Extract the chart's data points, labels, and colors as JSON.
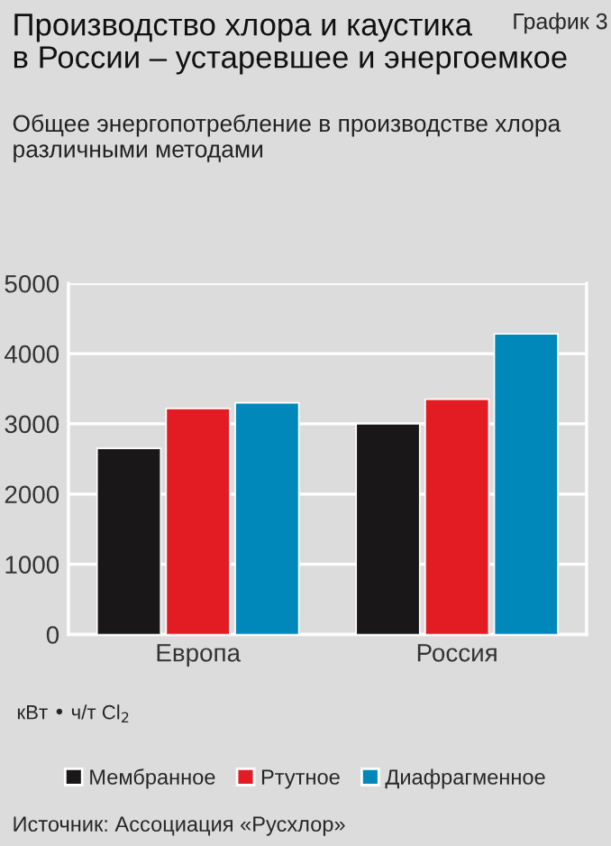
{
  "chart_data": {
    "type": "bar",
    "title": "Производство хлора и каустика\nв России – устаревшее и энергоемкое",
    "subtitle": "Общее энергопотребление в производстве хлора\nразличными методами",
    "ylabel": "кВт • ч/т Cl$_{2}$",
    "categories": [
      "Европа",
      "Россия"
    ],
    "series": [
      {
        "name": "Мембранное",
        "color": "#1a1718",
        "values": [
          2650,
          3000
        ]
      },
      {
        "name": "Ртутное",
        "color": "#e31b23",
        "values": [
          3220,
          3350
        ]
      },
      {
        "name": "Диафрагменное",
        "color": "#0088bb",
        "values": [
          3300,
          4280
        ]
      }
    ],
    "ylim": [
      0,
      5000
    ],
    "yticks": [
      0,
      1000,
      2000,
      3000,
      4000,
      5000
    ],
    "grid": "y",
    "legend": "bottom",
    "annotations": [
      "График 3",
      "Источник: Ассоциация «Русхлор»"
    ]
  }
}
